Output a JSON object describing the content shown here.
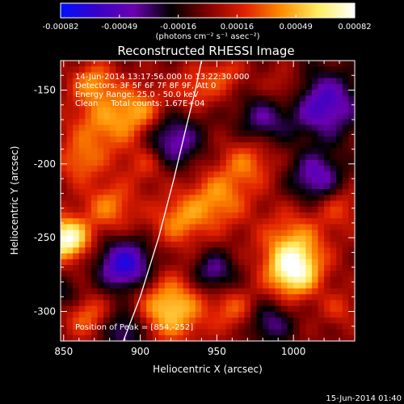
{
  "chart_data": {
    "type": "heatmap",
    "title": "Reconstructed RHESSI Image",
    "xlabel": "Heliocentric X (arcsec)",
    "ylabel": "Heliocentric Y (arcsec)",
    "xlim": [
      848,
      1040
    ],
    "ylim": [
      -320,
      -130
    ],
    "x_ticks": [
      850,
      900,
      950,
      1000
    ],
    "y_ticks": [
      -150,
      -200,
      -250,
      -300
    ],
    "colorbar": {
      "range": [
        -0.00082,
        0.00082
      ],
      "tick_labels": [
        "-0.00082",
        "-0.00049",
        "-0.00016",
        "0.00016",
        "0.00049",
        "0.00082"
      ],
      "unit_label": "(photons cm⁻² s⁻¹ asec⁻²)",
      "colors": [
        "#0010ff",
        "#3a00c8",
        "#6a00b0",
        "#000000",
        "#800000",
        "#e02000",
        "#ff8c00",
        "#ffee60",
        "#ffffff"
      ]
    },
    "annotations": [
      "14-Jun-2014 13:17:56.000 to 13:22:30.000",
      "Detectors: 3F 5F 6F 7F 8F 9F, Att 0",
      "Energy Range: 25.0 - 50.0 keV",
      "Clean     Total counts: 1.67E+04",
      "Position of Peak = [854,-252]"
    ],
    "peak": [
      854,
      -252
    ],
    "limb_curve": [
      [
        889,
        -320
      ],
      [
        900,
        -290
      ],
      [
        912,
        -250
      ],
      [
        922,
        -210
      ],
      [
        930,
        -175
      ],
      [
        936,
        -150
      ],
      [
        940,
        -130
      ]
    ],
    "sources": [
      {
        "x": 852,
        "y": -252,
        "sigma": 10,
        "amp": 1.0
      },
      {
        "x": 860,
        "y": -200,
        "sigma": 10,
        "amp": 0.35
      },
      {
        "x": 875,
        "y": -175,
        "sigma": 16,
        "amp": 0.45
      },
      {
        "x": 900,
        "y": -165,
        "sigma": 12,
        "amp": 0.5
      },
      {
        "x": 870,
        "y": -145,
        "sigma": 10,
        "amp": 0.45
      },
      {
        "x": 935,
        "y": -150,
        "sigma": 10,
        "amp": 0.35
      },
      {
        "x": 955,
        "y": -140,
        "sigma": 9,
        "amp": 0.3
      },
      {
        "x": 1000,
        "y": -275,
        "sigma": 12,
        "amp": 0.85
      },
      {
        "x": 1000,
        "y": -255,
        "sigma": 15,
        "amp": 0.5
      },
      {
        "x": 920,
        "y": -300,
        "sigma": 15,
        "amp": 0.7
      },
      {
        "x": 950,
        "y": -225,
        "sigma": 14,
        "amp": 0.5
      },
      {
        "x": 925,
        "y": -240,
        "sigma": 12,
        "amp": 0.45
      },
      {
        "x": 970,
        "y": -200,
        "sigma": 12,
        "amp": 0.4
      },
      {
        "x": 880,
        "y": -230,
        "sigma": 12,
        "amp": 0.45
      },
      {
        "x": 905,
        "y": -200,
        "sigma": 10,
        "amp": 0.35
      },
      {
        "x": 960,
        "y": -300,
        "sigma": 10,
        "amp": 0.35
      },
      {
        "x": 1030,
        "y": -230,
        "sigma": 10,
        "amp": 0.3
      },
      {
        "x": 995,
        "y": -150,
        "sigma": 10,
        "amp": 0.3
      },
      {
        "x": 865,
        "y": -305,
        "sigma": 10,
        "amp": 0.4
      },
      {
        "x": 1030,
        "y": -300,
        "sigma": 8,
        "amp": 0.25
      },
      {
        "x": 920,
        "y": -185,
        "sigma": 14,
        "amp": -0.6
      },
      {
        "x": 890,
        "y": -270,
        "sigma": 12,
        "amp": -0.85
      },
      {
        "x": 1020,
        "y": -160,
        "sigma": 16,
        "amp": -0.7
      },
      {
        "x": 1015,
        "y": -210,
        "sigma": 12,
        "amp": -0.6
      },
      {
        "x": 980,
        "y": -170,
        "sigma": 12,
        "amp": -0.45
      },
      {
        "x": 890,
        "y": -315,
        "sigma": 10,
        "amp": -0.5
      },
      {
        "x": 985,
        "y": -310,
        "sigma": 10,
        "amp": -0.45
      },
      {
        "x": 948,
        "y": -275,
        "sigma": 10,
        "amp": -0.5
      },
      {
        "x": 850,
        "y": -290,
        "sigma": 8,
        "amp": -0.3
      }
    ]
  },
  "timestamp": "15-Jun-2014 01:40"
}
